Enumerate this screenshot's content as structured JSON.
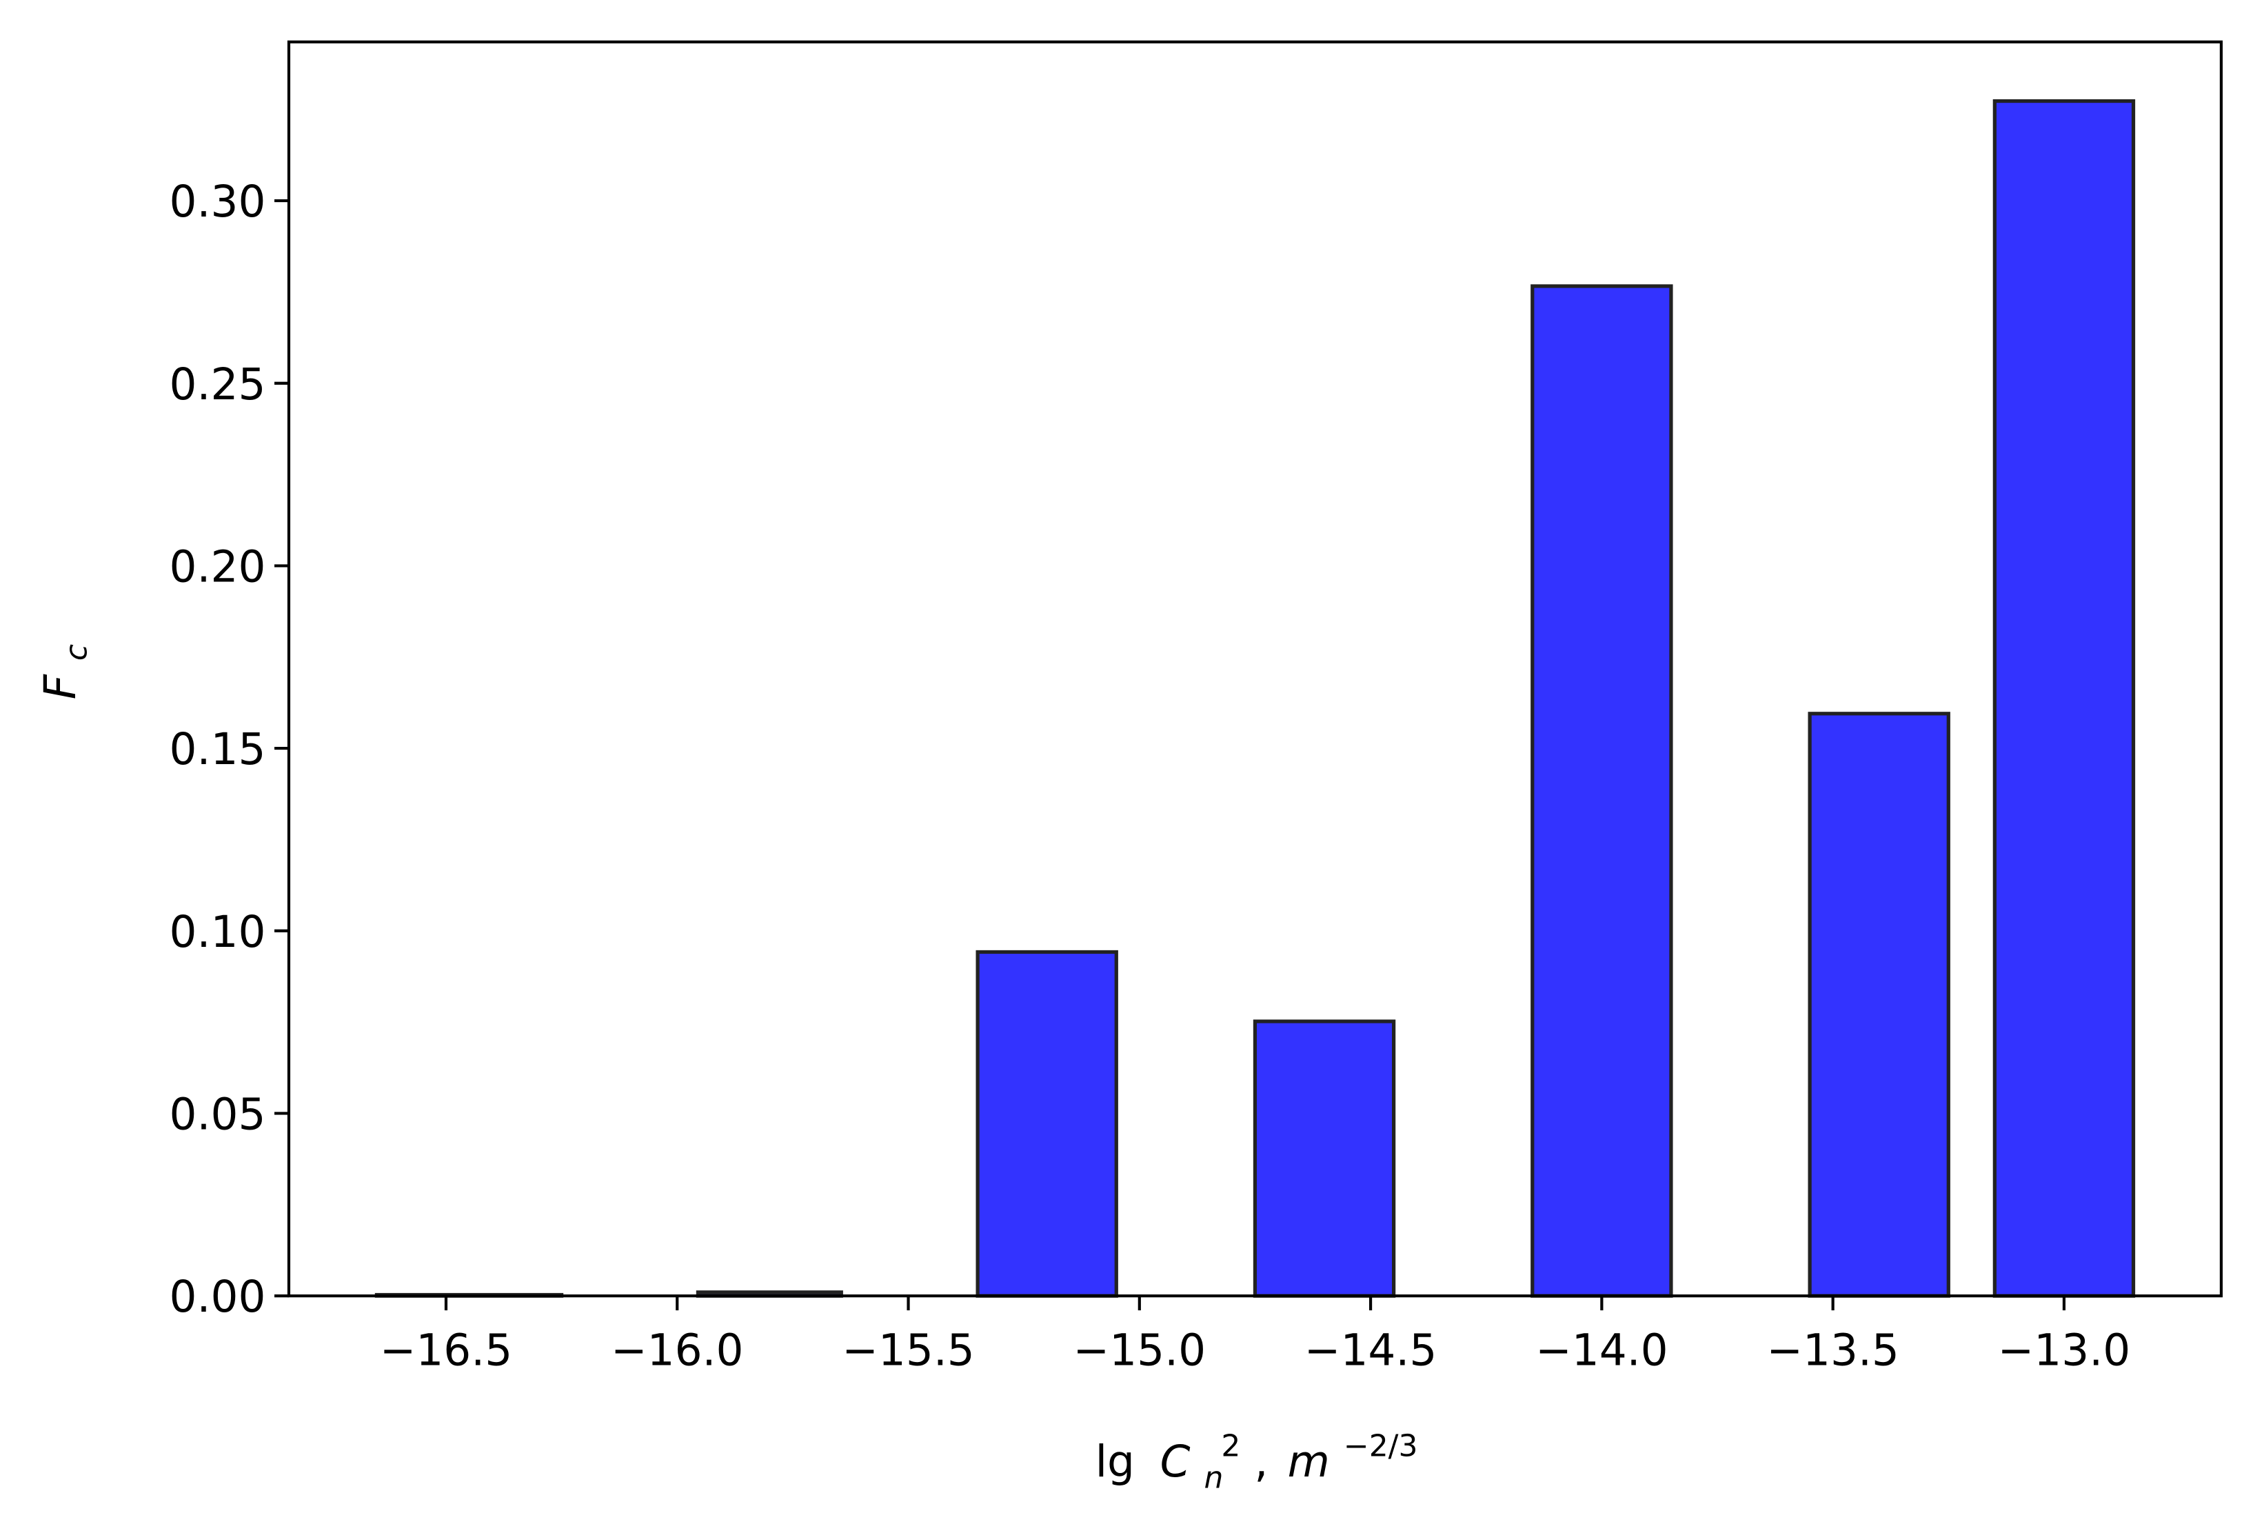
{
  "chart_data": {
    "type": "bar",
    "x": [
      -16.45,
      -15.8,
      -15.2,
      -14.6,
      -14.0,
      -13.4,
      -13.0
    ],
    "widths": [
      0.4,
      0.31,
      0.3,
      0.3,
      0.3,
      0.3,
      0.3
    ],
    "values": [
      0.0003,
      0.001,
      0.0942,
      0.0752,
      0.2766,
      0.1595,
      0.3273
    ],
    "color": "#3333ff",
    "edgecolor": "#222222",
    "xlim": [
      -16.84,
      -12.66
    ],
    "ylim": [
      0,
      0.3435
    ],
    "xticks": [
      {
        "value": -16.5,
        "label": "−16.5"
      },
      {
        "value": -16.0,
        "label": "−16.0"
      },
      {
        "value": -15.5,
        "label": "−15.5"
      },
      {
        "value": -15.0,
        "label": "−15.0"
      },
      {
        "value": -14.5,
        "label": "−14.5"
      },
      {
        "value": -14.0,
        "label": "−14.0"
      },
      {
        "value": -13.5,
        "label": "−13.5"
      },
      {
        "value": -13.0,
        "label": "−13.0"
      }
    ],
    "yticks": [
      {
        "value": 0,
        "label": "0.00"
      },
      0.05,
      {
        "value": 0.1,
        "label": "0.10"
      },
      0.15,
      {
        "value": 0.2,
        "label": "0.20"
      },
      0.25,
      {
        "value": 0.3,
        "label": "0.30"
      }
    ],
    "xlabel": [
      "lg",
      "C",
      "n",
      "2",
      ",",
      "m",
      "−2/3"
    ],
    "ylabel": [
      "F",
      "c"
    ],
    "grid": false
  }
}
